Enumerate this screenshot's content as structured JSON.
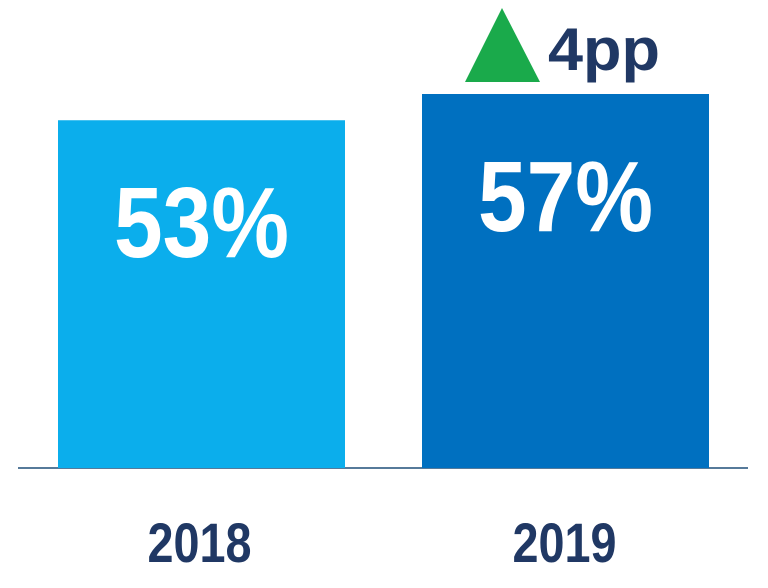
{
  "chart_data": {
    "type": "bar",
    "categories": [
      "2018",
      "2019"
    ],
    "values": [
      53,
      57
    ],
    "value_labels": [
      "53%",
      "57%"
    ],
    "colors": [
      "#0BAEEC",
      "#0070C0"
    ],
    "annotation": "4pp",
    "annotation_color": "#203864"
  }
}
